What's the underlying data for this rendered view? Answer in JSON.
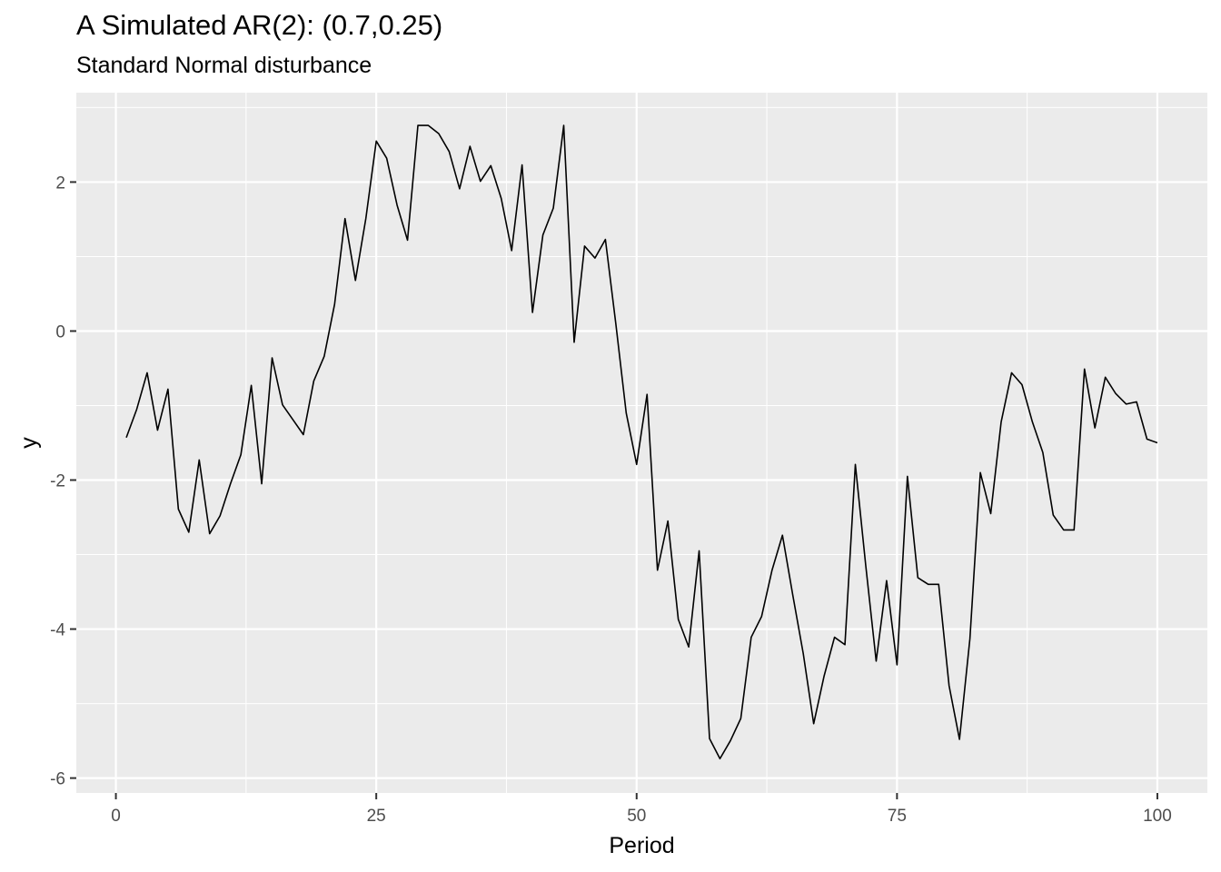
{
  "chart_data": {
    "type": "line",
    "title": "A Simulated AR(2): (0.7,0.25)",
    "subtitle": "Standard Normal disturbance",
    "xlabel": "Period",
    "ylabel": "y",
    "xlim": [
      -3.8,
      104.8
    ],
    "ylim": [
      -6.2,
      3.2
    ],
    "xticks": [
      0,
      25,
      50,
      75,
      100
    ],
    "yticks": [
      -6,
      -4,
      -2,
      0,
      2
    ],
    "grid": true,
    "line_color": "#000000",
    "panel_background": "#ebebeb",
    "grid_color": "#ffffff",
    "x": [
      1,
      2,
      3,
      4,
      5,
      6,
      7,
      8,
      9,
      10,
      11,
      12,
      13,
      14,
      15,
      16,
      17,
      18,
      19,
      20,
      21,
      22,
      23,
      24,
      25,
      26,
      27,
      28,
      29,
      30,
      31,
      32,
      33,
      34,
      35,
      36,
      37,
      38,
      39,
      40,
      41,
      42,
      43,
      44,
      45,
      46,
      47,
      48,
      49,
      50,
      51,
      52,
      53,
      54,
      55,
      56,
      57,
      58,
      59,
      60,
      61,
      62,
      63,
      64,
      65,
      66,
      67,
      68,
      69,
      70,
      71,
      72,
      73,
      74,
      75,
      76,
      77,
      78,
      79,
      80,
      81,
      82,
      83,
      84,
      85,
      86,
      87,
      88,
      89,
      90,
      91,
      92,
      93,
      94,
      95,
      96,
      97,
      98,
      99,
      100
    ],
    "y": [
      -1.43,
      -1.05,
      -0.56,
      -1.33,
      -0.78,
      -2.39,
      -2.7,
      -1.73,
      -2.72,
      -2.48,
      -2.05,
      -1.66,
      -0.73,
      -2.05,
      -0.36,
      -0.99,
      -1.19,
      -1.39,
      -0.67,
      -0.34,
      0.36,
      1.51,
      0.68,
      1.51,
      2.55,
      2.32,
      1.69,
      1.22,
      2.76,
      2.76,
      2.65,
      2.41,
      1.91,
      2.48,
      2.01,
      2.22,
      1.78,
      1.08,
      2.23,
      0.25,
      1.29,
      1.65,
      2.76,
      -0.15,
      1.14,
      0.98,
      1.23,
      0.1,
      -1.1,
      -1.79,
      -0.85,
      -3.21,
      -2.55,
      -3.87,
      -4.24,
      -2.95,
      -5.47,
      -5.74,
      -5.5,
      -5.2,
      -4.11,
      -3.83,
      -3.21,
      -2.74,
      -3.55,
      -4.33,
      -5.27,
      -4.63,
      -4.11,
      -4.21,
      -1.79,
      -3.15,
      -4.43,
      -3.35,
      -4.48,
      -1.95,
      -3.31,
      -3.4,
      -3.4,
      -4.76,
      -5.48,
      -4.13,
      -1.9,
      -2.45,
      -1.22,
      -0.56,
      -0.72,
      -1.22,
      -1.63,
      -2.47,
      -2.67,
      -2.67,
      -0.51,
      -1.3,
      -0.62,
      -0.84,
      -0.98,
      -0.95,
      -1.45,
      -1.5
    ]
  }
}
